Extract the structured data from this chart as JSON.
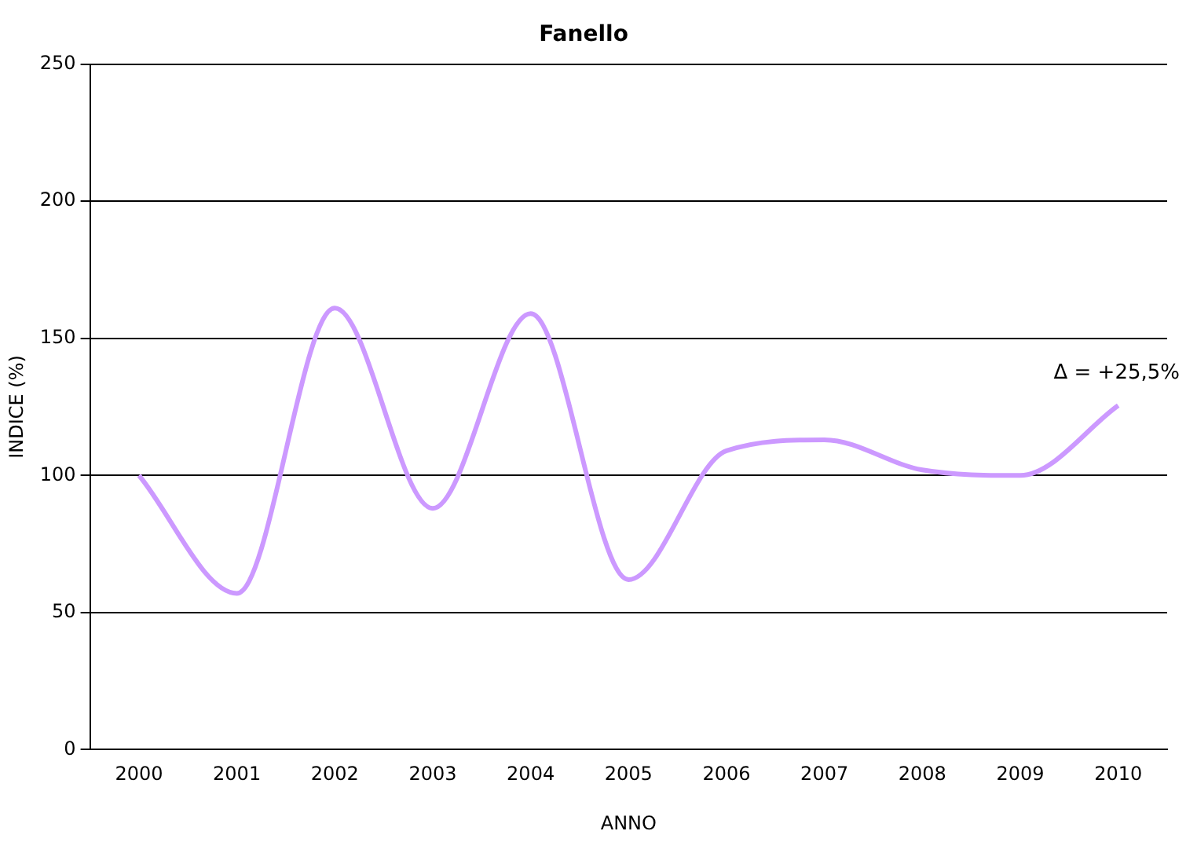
{
  "chart_data": {
    "type": "line",
    "title": "Fanello",
    "xlabel": "ANNO",
    "ylabel": "INDICE (%)",
    "categories": [
      "2000",
      "2001",
      "2002",
      "2003",
      "2004",
      "2005",
      "2006",
      "2007",
      "2008",
      "2009",
      "2010"
    ],
    "series": [
      {
        "color": "#cc99ff",
        "values": [
          100,
          57,
          161,
          88,
          159,
          62,
          109,
          113,
          102,
          100,
          125.5
        ]
      }
    ],
    "ylim": [
      0,
      250
    ],
    "yticks": [
      0,
      50,
      100,
      150,
      200,
      250
    ],
    "grid": "y",
    "legend": false,
    "marker": "none",
    "line_style": "solid",
    "annotations": [
      {
        "text": "Δ = +25,5%",
        "x": "2010",
        "y": 125.5
      }
    ]
  }
}
